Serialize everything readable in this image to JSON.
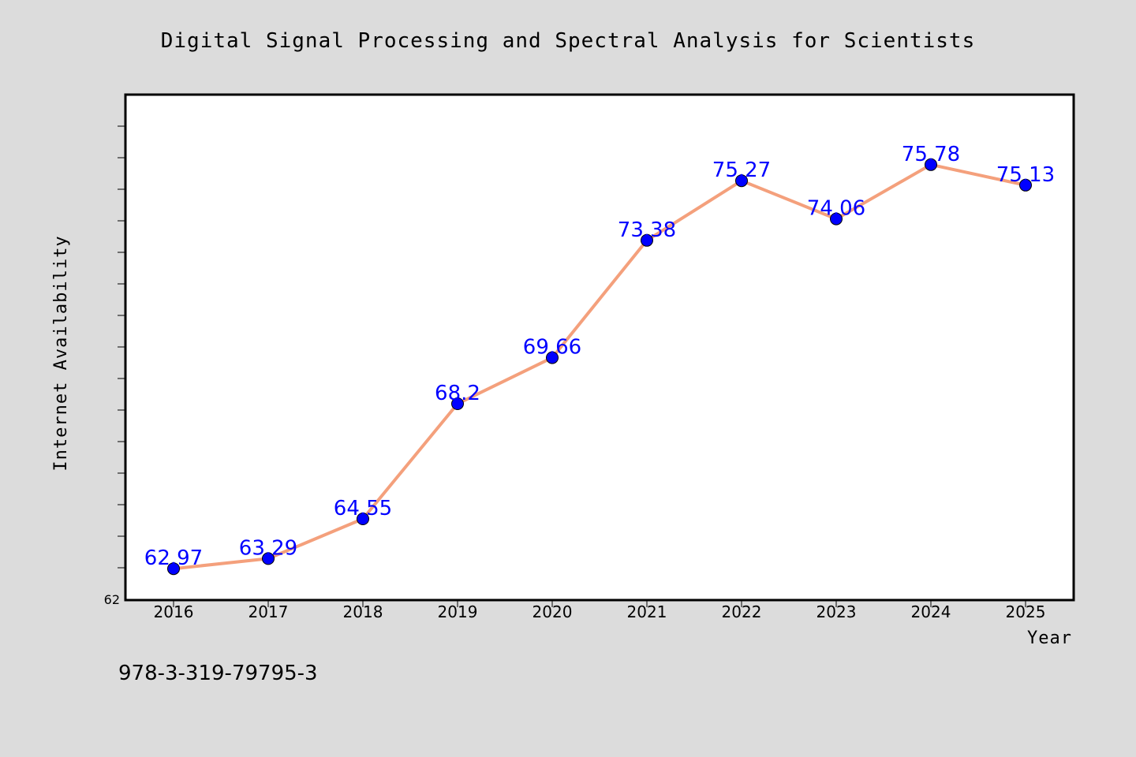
{
  "chart_data": {
    "type": "line",
    "title": "Digital Signal Processing and Spectral Analysis for Scientists",
    "xlabel": "Year",
    "ylabel": "Internet Availability",
    "ylim": [
      62,
      78
    ],
    "y_min_label": "62",
    "grid": false,
    "categories": [
      "2016",
      "2017",
      "2018",
      "2019",
      "2020",
      "2021",
      "2022",
      "2023",
      "2024",
      "2025"
    ],
    "series": [
      {
        "values": [
          62.97,
          63.29,
          64.55,
          68.2,
          69.66,
          73.38,
          75.27,
          74.06,
          75.78,
          75.13
        ],
        "labels": [
          "62.97",
          "63.29",
          "64.55",
          "68.2",
          "69.66",
          "73.38",
          "75.27",
          "74.06",
          "75.78",
          "75.13"
        ],
        "line_color": "#f4a07c",
        "marker_color": "#0000ff",
        "label_color": "#0000ff"
      }
    ]
  },
  "footer": {
    "isbn": "978-3-319-79795-3"
  },
  "colors": {
    "background": "#dcdcdc",
    "plot_background": "#ffffff",
    "axis": "#000000"
  }
}
